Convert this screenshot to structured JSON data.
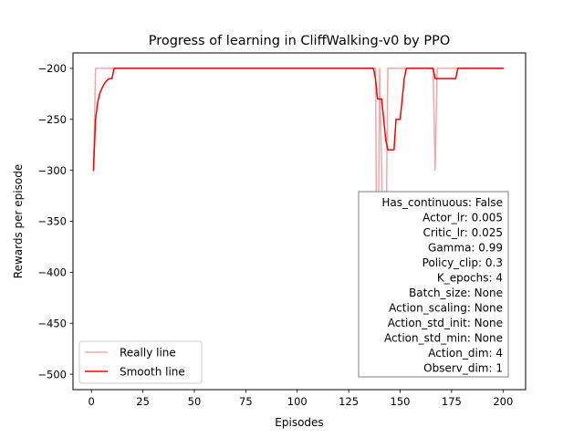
{
  "chart_data": {
    "type": "line",
    "title": "Progress of learning in CliffWalking-v0 by PPO",
    "xlabel": "Episodes",
    "ylabel": "Rewards per episode",
    "xlim": [
      -8.95,
      210.95
    ],
    "ylim": [
      -515.15,
      -184.85
    ],
    "xticks": [
      0,
      25,
      50,
      75,
      100,
      125,
      150,
      175,
      200
    ],
    "yticks": [
      -500,
      -450,
      -400,
      -350,
      -300,
      -250,
      -200
    ],
    "grid": false,
    "legend_position": "lower-left",
    "textbox_position": "lower-right",
    "textbox_lines": [
      "Has_continuous: False",
      "Actor_lr: 0.005",
      "Critic_lr: 0.025",
      "Gamma: 0.99",
      "Policy_clip: 0.3",
      "K_epochs: 4",
      "Batch_size: None",
      "Action_scaling: None",
      "Action_std_init: None",
      "Action_std_min: None",
      "Action_dim: 4",
      "Observ_dim: 1"
    ],
    "series": [
      {
        "name": "Really line",
        "color": "#f4a6a6",
        "x": [
          1,
          2,
          3,
          138,
          139,
          140,
          141,
          142,
          143,
          144,
          145,
          146,
          166,
          167,
          168,
          200
        ],
        "y": [
          -300,
          -200,
          -200,
          -200,
          -500,
          -200,
          -300,
          -400,
          -400,
          -200,
          -200,
          -200,
          -200,
          -300,
          -200,
          -200
        ]
      },
      {
        "name": "Smooth line",
        "color": "#ff0000",
        "x": [
          1,
          2,
          3,
          4,
          5,
          6,
          7,
          8,
          9,
          10,
          11,
          12,
          137,
          138,
          139,
          140,
          141,
          142,
          143,
          144,
          145,
          146,
          147,
          148,
          149,
          150,
          151,
          152,
          153,
          154,
          155,
          165,
          166,
          167,
          168,
          176,
          177,
          178,
          200
        ],
        "y": [
          -300,
          -250,
          -234,
          -225,
          -220,
          -216,
          -213,
          -211,
          -210,
          -210,
          -200,
          -200,
          -200,
          -210,
          -230,
          -230,
          -230,
          -250,
          -270,
          -280,
          -280,
          -280,
          -280,
          -250,
          -250,
          -250,
          -230,
          -210,
          -200,
          -200,
          -200,
          -200,
          -200,
          -210,
          -210,
          -210,
          -210,
          -200,
          -200
        ]
      }
    ]
  }
}
